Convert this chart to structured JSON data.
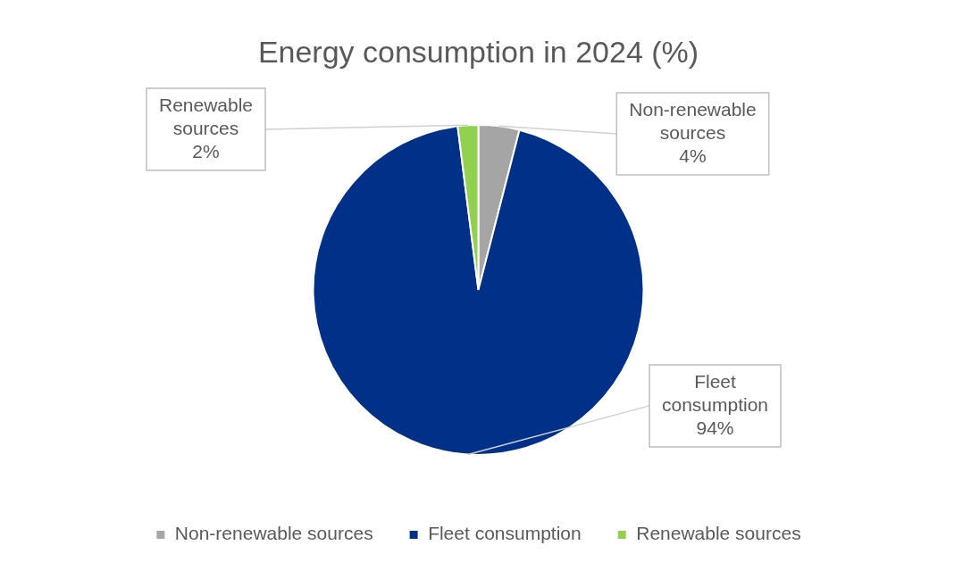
{
  "chart_data": {
    "type": "pie",
    "title": "Energy consumption in 2024 (%)",
    "categories": [
      "Non-renewable sources",
      "Fleet consumption",
      "Renewable sources"
    ],
    "values": [
      4,
      94,
      2
    ],
    "colors": [
      "#a5a5a5",
      "#003087",
      "#92d050"
    ],
    "value_labels": [
      "4%",
      "94%",
      "2%"
    ],
    "legend": "bottom"
  }
}
